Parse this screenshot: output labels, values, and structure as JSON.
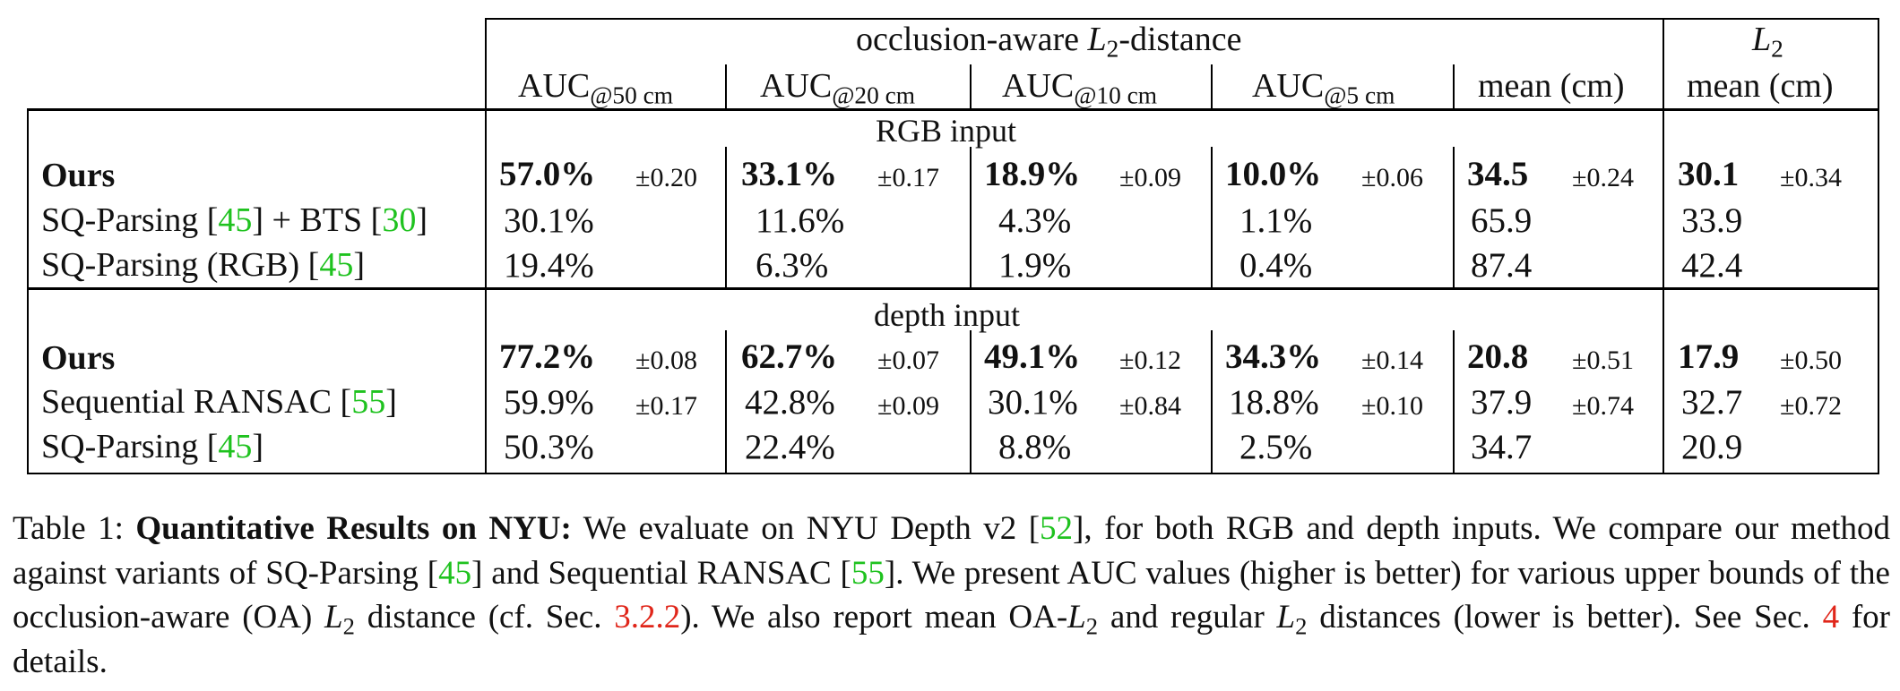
{
  "table": {
    "header": {
      "group_oa_prefix": "occlusion-aware ",
      "group_oa_var": "L",
      "group_oa_sub": "2",
      "group_oa_suffix": "-distance",
      "group_l2_var": "L",
      "group_l2_sub": "2",
      "col_auc": "AUC",
      "col_auc50_sub": "@50 cm",
      "col_auc20_sub": "@20 cm",
      "col_auc10_sub": "@10 cm",
      "col_auc5_sub": "@5 cm",
      "col_mean_oa": "mean (cm)",
      "col_mean_l2": "mean (cm)"
    },
    "sections": [
      {
        "title": "RGB input",
        "rows": [
          {
            "method": "Ours",
            "bold": true,
            "cells": [
              {
                "value": "57.0%",
                "pm": "±0.20"
              },
              {
                "value": "33.1%",
                "pm": "±0.17"
              },
              {
                "value": "18.9%",
                "pm": "±0.09"
              },
              {
                "value": "10.0%",
                "pm": "±0.06"
              },
              {
                "value": "34.5",
                "pm": "±0.24"
              },
              {
                "value": "30.1",
                "pm": "±0.34"
              }
            ]
          },
          {
            "method_a": "SQ-Parsing [",
            "ref_a": "45",
            "method_b": "] + BTS [",
            "ref_b": "30",
            "method_c": "]",
            "cells": [
              {
                "value": "30.1%"
              },
              {
                "value": "11.6%"
              },
              {
                "value": "4.3%"
              },
              {
                "value": "1.1%"
              },
              {
                "value": "65.9"
              },
              {
                "value": "33.9"
              }
            ]
          },
          {
            "method_a": "SQ-Parsing (RGB) [",
            "ref_a": "45",
            "method_b": "]",
            "cells": [
              {
                "value": "19.4%"
              },
              {
                "value": "6.3%"
              },
              {
                "value": "1.9%"
              },
              {
                "value": "0.4%"
              },
              {
                "value": "87.4"
              },
              {
                "value": "42.4"
              }
            ]
          }
        ]
      },
      {
        "title": "depth input",
        "rows": [
          {
            "method": "Ours",
            "bold": true,
            "cells": [
              {
                "value": "77.2%",
                "pm": "±0.08"
              },
              {
                "value": "62.7%",
                "pm": "±0.07"
              },
              {
                "value": "49.1%",
                "pm": "±0.12"
              },
              {
                "value": "34.3%",
                "pm": "±0.14"
              },
              {
                "value": "20.8",
                "pm": "±0.51"
              },
              {
                "value": "17.9",
                "pm": "±0.50"
              }
            ]
          },
          {
            "method_a": "Sequential RANSAC [",
            "ref_a": "55",
            "method_b": "]",
            "cells": [
              {
                "value": "59.9%",
                "pm": "±0.17"
              },
              {
                "value": "42.8%",
                "pm": "±0.09"
              },
              {
                "value": "30.1%",
                "pm": "±0.84"
              },
              {
                "value": "18.8%",
                "pm": "±0.10"
              },
              {
                "value": "37.9",
                "pm": "±0.74"
              },
              {
                "value": "32.7",
                "pm": "±0.72"
              }
            ]
          },
          {
            "method_a": "SQ-Parsing [",
            "ref_a": "45",
            "method_b": "]",
            "cells": [
              {
                "value": "50.3%"
              },
              {
                "value": "22.4%"
              },
              {
                "value": "8.8%"
              },
              {
                "value": "2.5%"
              },
              {
                "value": "34.7"
              },
              {
                "value": "20.9"
              }
            ]
          }
        ]
      }
    ]
  },
  "caption": {
    "label": "Table 1: ",
    "title": "Quantitative Results on NYU:",
    "t1": " We evaluate on NYU Depth v2 [",
    "r1": "52",
    "t2": "], for both RGB and depth inputs. We compare our method against variants of SQ-Parsing [",
    "r2": "45",
    "t3": "] and Sequential RANSAC [",
    "r3": "55",
    "t4": "]. We present AUC values (higher is better) for various upper bounds of the occlusion-aware (OA) ",
    "m1": "L",
    "m1_sub": "2",
    "t5": " distance (cf. Sec. ",
    "r4": "3.2.2",
    "t6": "). We also report mean OA-",
    "m2": "L",
    "m2_sub": "2",
    "t7": " and regular ",
    "m3": "L",
    "m3_sub": "2",
    "t8": " distances (lower is better). See Sec. ",
    "r5": "4",
    "t9": " for details."
  }
}
